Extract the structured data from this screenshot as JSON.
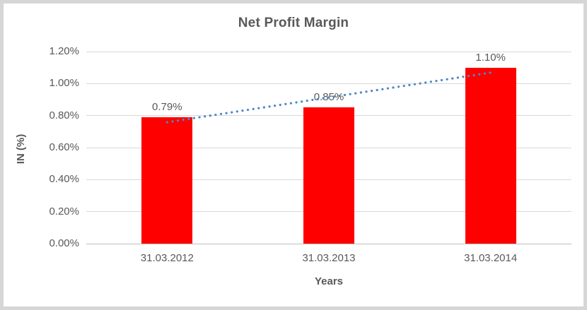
{
  "chart_data": {
    "type": "bar",
    "title": "Net Profit Margin",
    "xlabel": "Years",
    "ylabel": "IN (%)",
    "categories": [
      "31.03.2012",
      "31.03.2013",
      "31.03.2014"
    ],
    "values": [
      0.79,
      0.85,
      1.1
    ],
    "value_labels": [
      "0.79%",
      "0.85%",
      "1.10%"
    ],
    "ylim": [
      0,
      1.2
    ],
    "ytick_step": 0.2,
    "ytick_labels": [
      "0.00%",
      "0.20%",
      "0.40%",
      "0.60%",
      "0.80%",
      "1.00%",
      "1.20%"
    ],
    "grid": true,
    "legend": "none",
    "trendline": {
      "type": "linear",
      "style": "dotted",
      "color": "#4e87c9"
    },
    "colors": {
      "bar": "#ff0000",
      "title_text": "#595959",
      "axis_text": "#595959",
      "gridline": "#d9d9d9",
      "axis_line": "#bfbfbf",
      "frame_border": "#d6d6d6",
      "background": "#ffffff"
    }
  }
}
